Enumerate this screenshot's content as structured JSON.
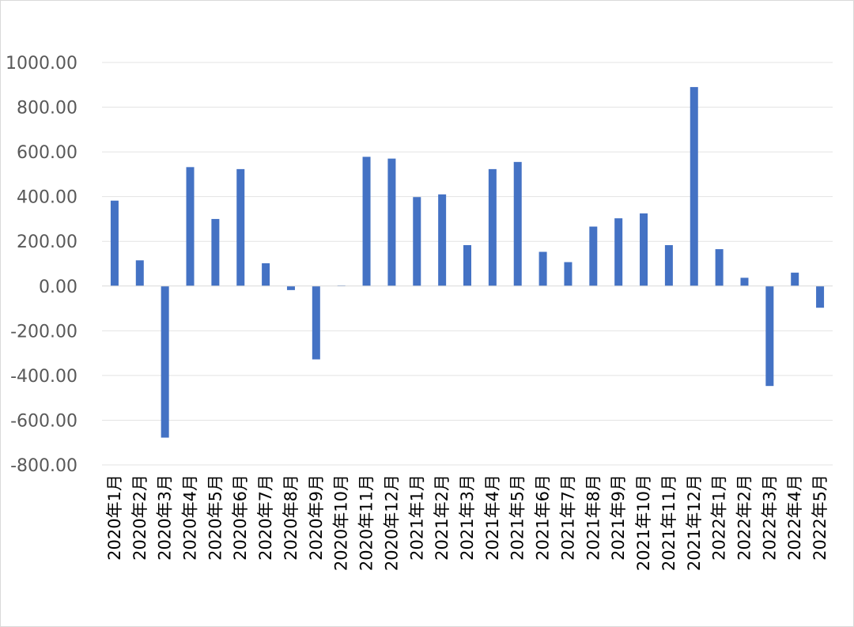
{
  "chart_data": {
    "type": "bar",
    "categories": [
      "2020年1月",
      "2020年2月",
      "2020年3月",
      "2020年4月",
      "2020年5月",
      "2020年6月",
      "2020年7月",
      "2020年8月",
      "2020年9月",
      "2020年10月",
      "2020年11月",
      "2020年12月",
      "2021年1月",
      "2021年2月",
      "2021年3月",
      "2021年4月",
      "2021年5月",
      "2021年6月",
      "2021年7月",
      "2021年8月",
      "2021年9月",
      "2021年10月",
      "2021年11月",
      "2021年12月",
      "2022年1月",
      "2022年2月",
      "2022年3月",
      "2022年4月",
      "2022年5月"
    ],
    "series": [
      {
        "values": [
          382,
          115,
          -678,
          532,
          300,
          523,
          102,
          -18,
          -328,
          3,
          578,
          570,
          398,
          410,
          183,
          523,
          555,
          153,
          107,
          266,
          303,
          325,
          183,
          890,
          165,
          37,
          -447,
          60,
          -97
        ],
        "color": "#4472c4"
      }
    ],
    "yticks": [
      "1000.00",
      "800.00",
      "600.00",
      "400.00",
      "200.00",
      "0.00",
      "-200.00",
      "-400.00",
      "-600.00",
      "-800.00"
    ],
    "ylim": [
      -800,
      1000
    ],
    "grid": true,
    "legend": "none"
  }
}
